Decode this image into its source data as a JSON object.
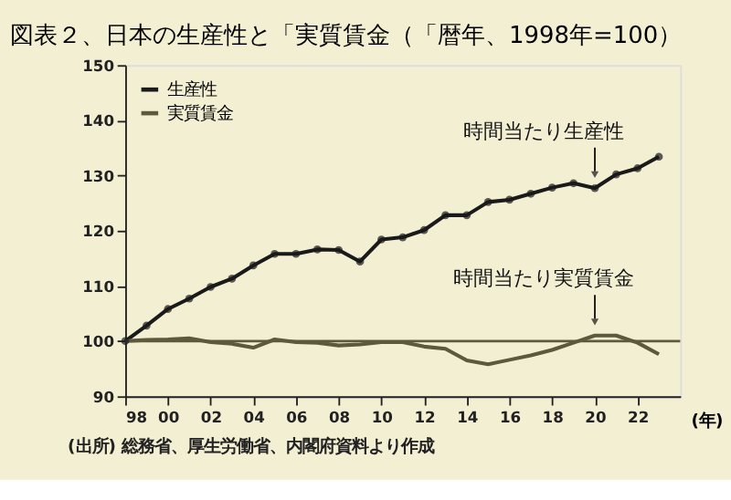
{
  "chart_data": {
    "type": "line",
    "title": "図表２、日本の生産性と「実質賃金（「暦年、1998年=100）",
    "xlabel": "(年)",
    "x": [
      1998,
      1999,
      2000,
      2001,
      2002,
      2003,
      2004,
      2005,
      2006,
      2007,
      2008,
      2009,
      2010,
      2011,
      2012,
      2013,
      2014,
      2015,
      2016,
      2017,
      2018,
      2019,
      2020,
      2021,
      2022,
      2023
    ],
    "series": [
      {
        "name": "生産性",
        "color": "#1a1a1a",
        "marker": "circle",
        "values": [
          100,
          102.8,
          105.8,
          107.7,
          109.8,
          111.3,
          113.7,
          115.8,
          115.8,
          116.6,
          116.5,
          114.4,
          118.4,
          118.8,
          120.1,
          122.8,
          122.8,
          125.2,
          125.6,
          126.7,
          127.8,
          128.6,
          127.7,
          130.2,
          131.3,
          133.4
        ]
      },
      {
        "name": "実質賃金",
        "color": "#5c5a3c",
        "marker": "none",
        "values": [
          100,
          100.2,
          100.3,
          100.5,
          99.8,
          99.5,
          98.8,
          100.3,
          99.8,
          99.7,
          99.2,
          99.4,
          99.8,
          99.8,
          99,
          98.6,
          96.5,
          95.8,
          96.6,
          97.4,
          98.4,
          99.7,
          101,
          101,
          99.7,
          97.6
        ]
      }
    ],
    "xlim": [
      1998,
      2024
    ],
    "xticks": [
      {
        "value": 1998,
        "label": "98"
      },
      {
        "value": 2000,
        "label": "00"
      },
      {
        "value": 2002,
        "label": "02"
      },
      {
        "value": 2004,
        "label": "04"
      },
      {
        "value": 2006,
        "label": "06"
      },
      {
        "value": 2008,
        "label": "08"
      },
      {
        "value": 2010,
        "label": "10"
      },
      {
        "value": 2012,
        "label": "12"
      },
      {
        "value": 2014,
        "label": "14"
      },
      {
        "value": 2016,
        "label": "16"
      },
      {
        "value": 2018,
        "label": "18"
      },
      {
        "value": 2020,
        "label": "20"
      },
      {
        "value": 2022,
        "label": "22"
      }
    ],
    "ylim": [
      90,
      150
    ],
    "yticks": [
      90,
      100,
      110,
      120,
      130,
      140,
      150
    ],
    "ref_lines": [
      {
        "axis": "y",
        "value": 100,
        "label": null,
        "color": "#5c5a3c"
      }
    ],
    "annotations": [
      {
        "text": "時間当たり生産性",
        "x": 2020,
        "y": 127.7
      },
      {
        "text": "時間当たり実質賃金",
        "x": 2020,
        "y": 101
      },
      "(出所) 総務省、厚生労働省、内閣府資料より作成"
    ],
    "legend": "top left",
    "grid": false
  }
}
